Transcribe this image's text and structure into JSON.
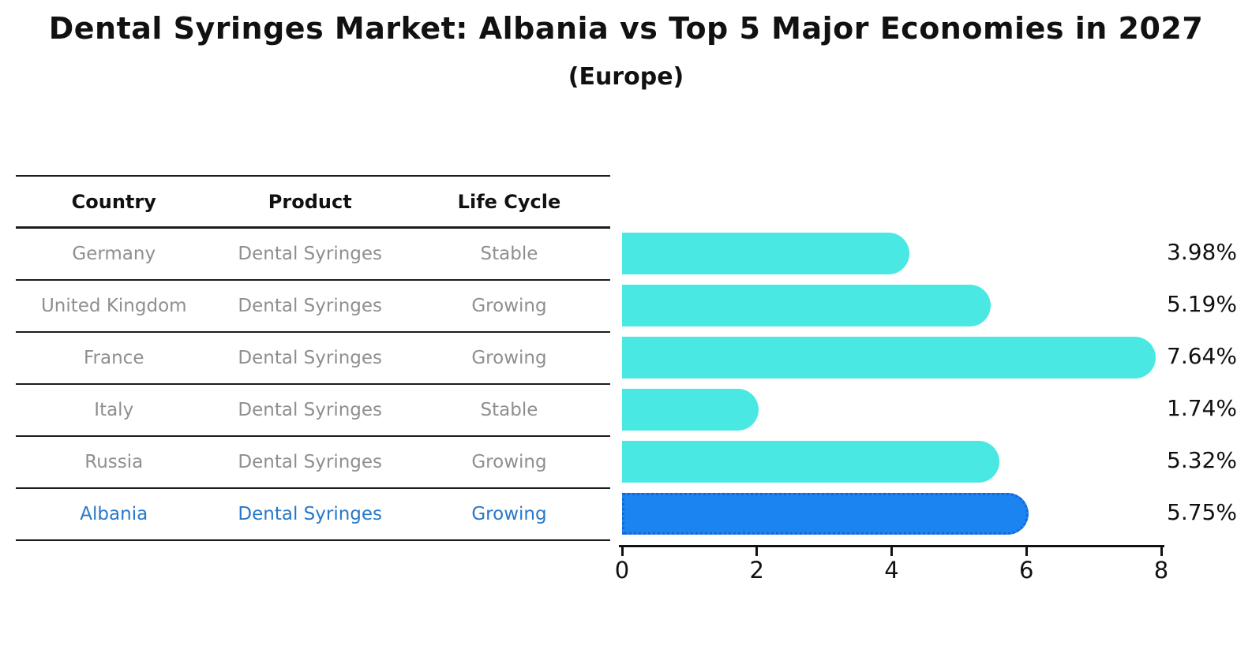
{
  "title": "Dental Syringes Market: Albania vs Top 5 Major Economies in 2027",
  "subtitle": "(Europe)",
  "table": {
    "headers": [
      "Country",
      "Product",
      "Life Cycle"
    ],
    "rows": [
      {
        "country": "Germany",
        "product": "Dental Syringes",
        "life_cycle": "Stable",
        "highlighted": false
      },
      {
        "country": "United Kingdom",
        "product": "Dental Syringes",
        "life_cycle": "Growing",
        "highlighted": false
      },
      {
        "country": "France",
        "product": "Dental Syringes",
        "life_cycle": "Growing",
        "highlighted": false
      },
      {
        "country": "Italy",
        "product": "Dental Syringes",
        "life_cycle": "Stable",
        "highlighted": false
      },
      {
        "country": "Russia",
        "product": "Dental Syringes",
        "life_cycle": "Growing",
        "highlighted": false
      },
      {
        "country": "Albania",
        "product": "Dental Syringes",
        "life_cycle": "Growing",
        "highlighted": true
      }
    ]
  },
  "chart_data": {
    "type": "bar",
    "orientation": "horizontal",
    "title": "Dental Syringes Market: Albania vs Top 5 Major Economies in 2027",
    "subtitle": "(Europe)",
    "categories": [
      "Germany",
      "United Kingdom",
      "France",
      "Italy",
      "Russia",
      "Albania"
    ],
    "values": [
      3.98,
      5.19,
      7.64,
      1.74,
      5.32,
      5.75
    ],
    "value_labels": [
      "3.98%",
      "5.19%",
      "7.64%",
      "1.74%",
      "5.32%",
      "5.75%"
    ],
    "xlabel": "",
    "ylabel": "",
    "xlim": [
      0,
      8
    ],
    "xticks": [
      0,
      2,
      4,
      6,
      8
    ],
    "grid": false,
    "legend": false,
    "highlight_index": 5
  },
  "colors": {
    "bar": "#4ae8e2",
    "highlight_bar": "#1b84f0",
    "highlight_border": "#1766d8",
    "highlight_text": "#2878c8",
    "muted_text": "#8f8f8f",
    "axis": "#111111"
  }
}
